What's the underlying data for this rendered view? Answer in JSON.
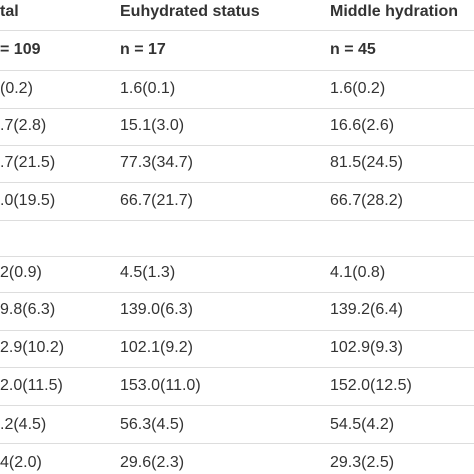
{
  "table": {
    "header": [
      "tal",
      "Euhydrated status",
      "Middle hydration"
    ],
    "rows": [
      [
        "= 109",
        "n = 17",
        "n = 45"
      ],
      [
        "(0.2)",
        "1.6(0.1)",
        "1.6(0.2)"
      ],
      [
        ".7(2.8)",
        "15.1(3.0)",
        "16.6(2.6)"
      ],
      [
        ".7(21.5)",
        "77.3(34.7)",
        "81.5(24.5)"
      ],
      [
        ".0(19.5)",
        "66.7(21.7)",
        "66.7(28.2)"
      ],
      [
        "2(0.9)",
        "4.5(1.3)",
        "4.1(0.8)"
      ],
      [
        "9.8(6.3)",
        "139.0(6.3)",
        "139.2(6.4)"
      ],
      [
        "2.9(10.2)",
        "102.1(9.2)",
        "102.9(9.3)"
      ],
      [
        "2.0(11.5)",
        "153.0(11.0)",
        "152.0(12.5)"
      ],
      [
        ".2(4.5)",
        "56.3(4.5)",
        "54.5(4.2)"
      ],
      [
        "4(2.0)",
        "29.6(2.3)",
        "29.3(2.5)"
      ]
    ]
  }
}
